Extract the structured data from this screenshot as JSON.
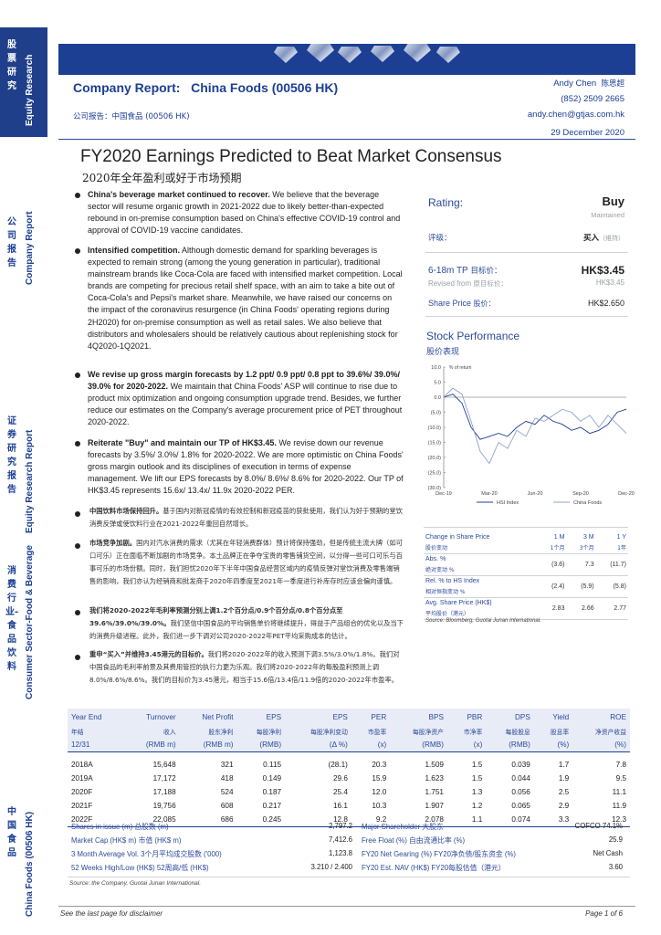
{
  "sidebar": {
    "equity_zh": "股票研究",
    "equity_en": "Equity Research",
    "company_zh": "公司报告",
    "company_en": "Company Report",
    "report_zh": "证券研究报告",
    "report_en": "Equity Research Report",
    "sector_zh": "消费行业-食品饮料",
    "sector_en": "Consumer Sector-Food & Beverage",
    "ticker_zh": "中国食品",
    "ticker_en": "China Foods (00506 HK)"
  },
  "header": {
    "report_type": "Company Report:",
    "company": "China Foods (00506 HK)",
    "report_type_zh": "公司报告：中国食品 (00506 HK)",
    "analyst": "Andy Chen",
    "analyst_zh": "陈思超",
    "phone": "(852) 2509 2665",
    "email": "andy.chen@gtjas.com.hk",
    "date": "29 December 2020"
  },
  "title": {
    "en": "FY2020 Earnings Predicted to Beat Market Consensus",
    "zh": "2020年全年盈利或好于市场预期"
  },
  "bullets": [
    {
      "bold": "China's beverage market continued to recover.",
      "text": " We believe that the beverage sector will resume organic growth in 2021-2022 due to likely better-than-expected rebound in on-premise consumption based on China's effective COVID-19 control and approval of COVID-19 vaccine candidates."
    },
    {
      "bold": "Intensified competition.",
      "text": " Although domestic demand for sparkling beverages is expected to remain strong (among the young generation in particular), traditional mainstream brands like Coca-Cola are faced with intensified market competition. Local brands are competing for precious retail shelf space, with an aim to take a bite out of Coca-Cola's and Pepsi's market share. Meanwhile, we have raised our concerns on the impact of the coronavirus resurgence (in China Foods' operating regions during 2H2020) for on-premise consumption as well as retail sales. We also believe that distributors and wholesalers should be relatively cautious about replenishing stock for 4Q2020-1Q2021."
    },
    {
      "bold": "We revise up gross margin forecasts by 1.2 ppt/ 0.9 ppt/ 0.8 ppt to 39.6%/ 39.0%/ 39.0% for 2020-2022.",
      "text": " We maintain that China Foods' ASP will continue to rise due to product mix optimization and ongoing consumption upgrade trend. Besides, we further reduce our estimates on the Company's average procurement price of PET throughout 2020-2022."
    },
    {
      "bold": "Reiterate \"Buy\" and maintain our TP of HK$3.45.",
      "text": " We revise down our revenue forecasts by 3.5%/ 3.0%/ 1.8% for 2020-2022. We are more optimistic on China Foods' gross margin outlook and its disciplines of execution in terms of expense management. We lift our EPS forecasts by 8.0%/ 8.6%/ 8.6% for 2020-2022. Our TP of HK$3.45 represents 15.6x/ 13.4x/ 11.9x 2020-2022 PER."
    }
  ],
  "bullets_zh": [
    {
      "bold": "中国饮料市场保持回升。",
      "text": "基于国内对新冠疫情的有效控制和新冠疫苗的获批使用，我们认为好于预期的堂饮消费反弹或使饮料行业在2021-2022年重回自然增长。"
    },
    {
      "bold": "市场竞争加剧。",
      "text": "国内对汽水消费的需求（尤其在年轻消费群体）预计将保持强劲，但是传统主流大牌（如可口可乐）正在面临不断加剧的市场竞争。本土品牌正在争夺宝贵的零售铺货空间，以分得一些可口可乐与百事可乐的市场份额。同时，我们担忧2020年下半年中国食品经营区域内的疫情反弹对堂饮消费及零售端销售的影响，我们亦认为经销商和批发商于2020年四季度至2021年一季度进行补库存时应该会偏向谨慎。"
    },
    {
      "bold": "我们将2020-2022年毛利率预测分别上调1.2个百分点/0.9个百分点/0.8个百分点至39.6%/39.0%/39.0%。",
      "text": "我们坚信中国食品的平均销售单价将继续提升，得益于产品组合的优化以及当下的消费升级进程。此外，我们进一步下调对公司2020-2022年PET平均采购成本的估计。"
    },
    {
      "bold": "重申“买入”并维持3.45港元的目标价。",
      "text": "我们将2020-2022年的收入预测下调3.5%/3.0%/1.8%。我们对中国食品的毛利率前景及其费用管控的执行力更为乐观。我们将2020-2022年的每股盈利预测上调8.0%/8.6%/8.6%。我们的目标价为3.45港元，相当于15.6倍/13.4倍/11.9倍的2020-2022年市盈率。"
    }
  ],
  "rating": {
    "label": "Rating:",
    "value": "Buy",
    "status": "Maintained",
    "label_zh": "评级：",
    "value_zh": "买入",
    "status_zh": "（维持）",
    "tp_label": "6-18m TP",
    "tp_label_zh": "目标价：",
    "tp_value": "HK$3.45",
    "revised_label": "Revised from",
    "revised_label_zh": "原目标价：",
    "revised_value": "HK$3.45",
    "price_label": "Share Price",
    "price_label_zh": "股价：",
    "price_value": "HK$2.650"
  },
  "stock_performance": {
    "title": "Stock Performance",
    "title_zh": "股价表现"
  },
  "chart_data": {
    "type": "line",
    "title": "",
    "ylabel": "% of return",
    "ylim": [
      -30,
      10
    ],
    "yticks": [
      "10.0",
      "5.0",
      "0.0",
      "(5.0)",
      "(10.0)",
      "(15.0)",
      "(20.0)",
      "(25.0)",
      "(30.0)"
    ],
    "x_labels": [
      "Dec-19",
      "Mar-20",
      "Jun-20",
      "Sep-20",
      "Dec-20"
    ],
    "x": [
      0,
      0.05,
      0.1,
      0.15,
      0.2,
      0.25,
      0.3,
      0.35,
      0.4,
      0.45,
      0.5,
      0.55,
      0.6,
      0.65,
      0.7,
      0.75,
      0.8,
      0.85,
      0.9,
      0.95,
      1.0
    ],
    "series": [
      {
        "name": "HSI Index",
        "color": "#1c3f94",
        "values": [
          0,
          1,
          -2,
          -10,
          -14,
          -13,
          -12,
          -13,
          -10,
          -8,
          -9,
          -6,
          -8,
          -9,
          -11,
          -10,
          -12,
          -11,
          -9,
          -5,
          -4
        ]
      },
      {
        "name": "China Foods",
        "color": "#8fa3c8",
        "values": [
          0,
          3,
          1,
          -8,
          -18,
          -22,
          -15,
          -17,
          -11,
          -13,
          -7,
          -8,
          -6,
          -4,
          -5,
          -8,
          -6,
          -10,
          -6,
          -9,
          -12
        ]
      }
    ],
    "legend": "bottom"
  },
  "change_table": {
    "header": [
      "Change in Share Price",
      "1 M",
      "3 M",
      "1 Y"
    ],
    "header_zh": [
      "股价变动",
      "1个月",
      "3个月",
      "1年"
    ],
    "rows": [
      {
        "label": "Abs. %",
        "label_zh": "绝对变动 %",
        "values": [
          "(3.6)",
          "7.3",
          "(11.7)"
        ]
      },
      {
        "label": "Rel. % to HS Index",
        "label_zh": "相对恒指变动 %",
        "values": [
          "(2.4)",
          "(5.9)",
          "(5.8)"
        ]
      },
      {
        "label": "Avg. Share Price (HK$)",
        "label_zh": "平均股价（港元）",
        "values": [
          "2.83",
          "2.66",
          "2.77"
        ]
      }
    ],
    "source": "Source: Bloomberg, Guotai Junan International."
  },
  "fin_table": {
    "header": [
      "Year End",
      "Turnover",
      "Net Profit",
      "EPS",
      "EPS",
      "PER",
      "BPS",
      "PBR",
      "DPS",
      "Yield",
      "ROE"
    ],
    "header_zh": [
      "年结",
      "收入",
      "股东净利",
      "每股净利",
      "每股净利变动",
      "市盈率",
      "每股净资产",
      "市净率",
      "每股股息",
      "股息率",
      "净资产收益"
    ],
    "units": [
      "12/31",
      "(RMB m)",
      "(RMB m)",
      "(RMB)",
      "(Δ %)",
      "(x)",
      "(RMB)",
      "(x)",
      "(RMB)",
      "(%)",
      "(%)"
    ],
    "rows": [
      [
        "2018A",
        "15,648",
        "321",
        "0.115",
        "(28.1)",
        "20.3",
        "1.509",
        "1.5",
        "0.039",
        "1.7",
        "7.8"
      ],
      [
        "2019A",
        "17,172",
        "418",
        "0.149",
        "29.6",
        "15.9",
        "1.623",
        "1.5",
        "0.044",
        "1.9",
        "9.5"
      ],
      [
        "2020F",
        "17,188",
        "524",
        "0.187",
        "25.4",
        "12.0",
        "1.751",
        "1.3",
        "0.056",
        "2.5",
        "11.1"
      ],
      [
        "2021F",
        "19,756",
        "608",
        "0.217",
        "16.1",
        "10.3",
        "1.907",
        "1.2",
        "0.065",
        "2.9",
        "11.9"
      ],
      [
        "2022F",
        "22,085",
        "686",
        "0.245",
        "12.8",
        "9.2",
        "2.078",
        "1.1",
        "0.074",
        "3.3",
        "12.3"
      ]
    ]
  },
  "stats_left": [
    {
      "label": "Shares in issue (m) 总股数 (m)",
      "value": "2,797.2"
    },
    {
      "label": "Market Cap (HK$ m) 市值 (HK$ m)",
      "value": "7,412.6"
    },
    {
      "label": "3 Month Average Vol. 3个月平均成交股数 ('000)",
      "value": "1,123.8"
    },
    {
      "label": "52 Weeks High/Low (HK$) 52周高/低 (HK$)",
      "value": "3.210 / 2.400"
    }
  ],
  "stats_right": [
    {
      "label": "Major Shareholder 大股东",
      "value": "COFCO 74.1%"
    },
    {
      "label": "Free Float (%) 自由流通比率 (%)",
      "value": "25.9"
    },
    {
      "label": "FY20 Net Gearing (%) FY20净负债/股东资金 (%)",
      "value": "Net Cash"
    },
    {
      "label": "FY20 Est. NAV (HK$) FY20每股估值（港元）",
      "value": "3.60"
    }
  ],
  "table_source": "Source: the Company, Guotai Junan International.",
  "footer": {
    "disclaimer": "See the last page for disclaimer",
    "page": "Page 1 of 6"
  }
}
